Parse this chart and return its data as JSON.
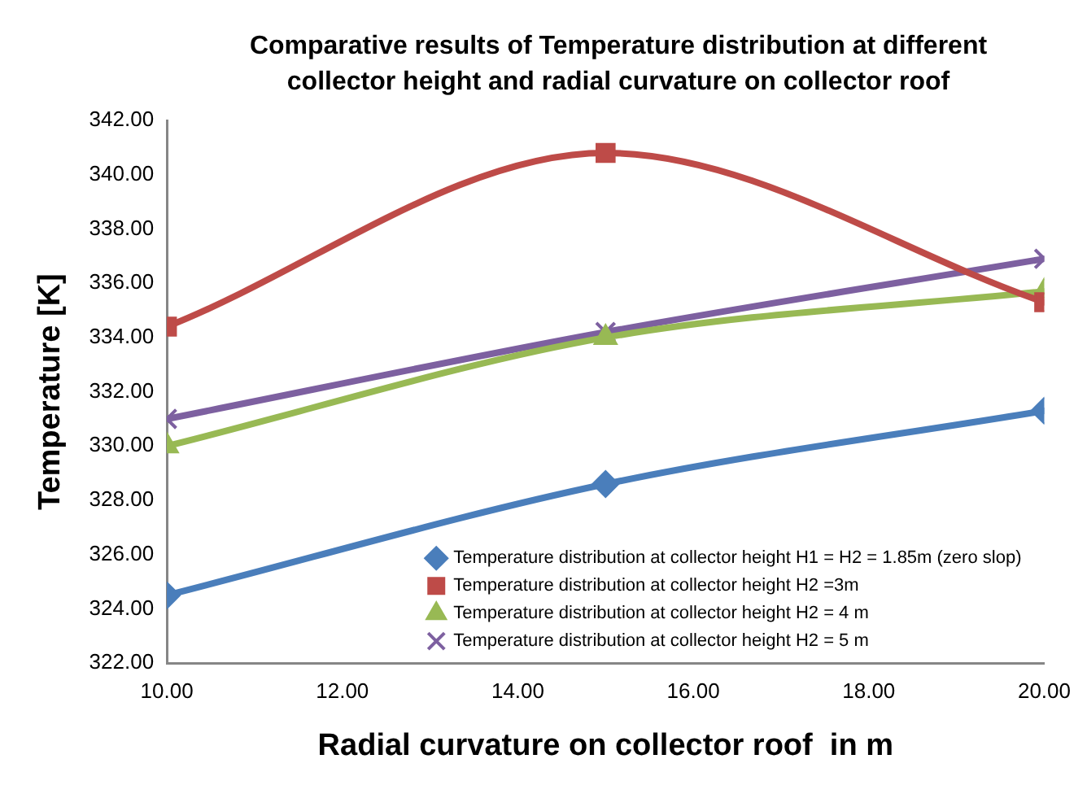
{
  "chart_data": {
    "type": "line",
    "title": "Comparative results of  Temperature distribution at different collector height and radial curvature on collector roof",
    "xlabel": "Radial curvature on collector roof  in m",
    "ylabel": "Temperature [K]",
    "x": [
      10,
      15,
      20
    ],
    "series": [
      {
        "name": "Temperature distribution at collector height H1 = H2 = 1.85m (zero slop)",
        "color": "#4a7ebb",
        "marker": "diamond",
        "values": [
          324.5,
          328.6,
          331.3
        ]
      },
      {
        "name": "Temperature distribution at collector height H2 =3m",
        "color": "#be4b48",
        "marker": "square",
        "values": [
          334.4,
          340.8,
          335.3
        ]
      },
      {
        "name": "Temperature distribution at collector height H2 = 4 m",
        "color": "#98b954",
        "marker": "triangle",
        "values": [
          330.0,
          334.0,
          335.7
        ]
      },
      {
        "name": "Temperature distribution at collector height H2 = 5 m",
        "color": "#7d60a0",
        "marker": "cross",
        "values": [
          331.0,
          334.2,
          336.9
        ]
      }
    ],
    "xlim": [
      10,
      20
    ],
    "xticks": [
      {
        "value": 10,
        "label": "10.00"
      },
      {
        "value": 12,
        "label": "12.00"
      },
      {
        "value": 14,
        "label": "14.00"
      },
      {
        "value": 16,
        "label": "16.00"
      },
      {
        "value": 18,
        "label": "18.00"
      },
      {
        "value": 20,
        "label": "20.00"
      }
    ],
    "ylim": [
      322,
      342
    ],
    "yticks": [
      {
        "value": 322,
        "label": "322.00"
      },
      {
        "value": 324,
        "label": "324.00"
      },
      {
        "value": 326,
        "label": "326.00"
      },
      {
        "value": 328,
        "label": "328.00"
      },
      {
        "value": 330,
        "label": "330.00"
      },
      {
        "value": 332,
        "label": "332.00"
      },
      {
        "value": 334,
        "label": "334.00"
      },
      {
        "value": 336,
        "label": "336.00"
      },
      {
        "value": 338,
        "label": "338.00"
      },
      {
        "value": 340,
        "label": "340.00"
      },
      {
        "value": 342,
        "label": "342.00"
      }
    ],
    "grid": false,
    "legend": "bottom right"
  }
}
